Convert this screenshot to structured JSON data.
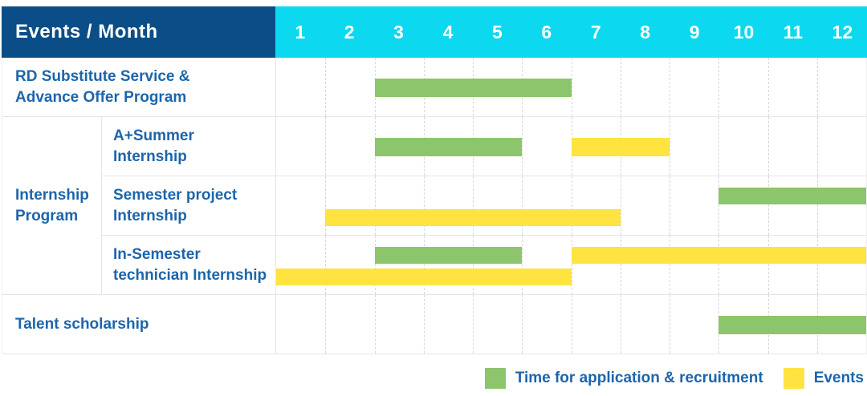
{
  "header": {
    "title": "Events / Month"
  },
  "legend": {
    "application": "Time for application & recruitment",
    "events": "Events"
  },
  "colors": {
    "header_bg": "#0b4e87",
    "months_bg": "#0cd9f0",
    "header_text": "#ffffff",
    "label_text": "#1d65ab",
    "green": "#8cc56b",
    "yellow": "#ffe340",
    "grid_line": "#e5e5e5",
    "month_line": "#d8d8d8"
  },
  "chart_data": {
    "type": "table",
    "subtype": "gantt-schedule",
    "title": "Events / Month",
    "x_axis_unit": "month",
    "x_categories": [
      "1",
      "2",
      "3",
      "4",
      "5",
      "6",
      "7",
      "8",
      "9",
      "10",
      "11",
      "12"
    ],
    "series_legend": [
      {
        "name": "Time for application & recruitment",
        "color": "#8cc56b"
      },
      {
        "name": "Events",
        "color": "#ffe340"
      }
    ],
    "rows": [
      {
        "group": "",
        "label": "RD Substitute Service & Advance Offer Program",
        "label_display": "RD Substitute Service &\nAdvance Offer Program",
        "lines": 1,
        "bars": [
          {
            "series": "Time for application & recruitment",
            "color_key": "green",
            "start_month": 3,
            "end_month": 6,
            "line": 1
          }
        ]
      },
      {
        "group": "Internship Program",
        "group_display": "Internship\nProgram",
        "group_start": true,
        "group_span": 3,
        "label": "A+Summer Internship",
        "label_display": "A+Summer\nInternship",
        "lines": 1,
        "bars": [
          {
            "series": "Time for application & recruitment",
            "color_key": "green",
            "start_month": 3,
            "end_month": 5,
            "line": 1
          },
          {
            "series": "Events",
            "color_key": "yellow",
            "start_month": 7,
            "end_month": 8,
            "line": 1
          }
        ]
      },
      {
        "group": "Internship Program",
        "label": "Semester project Internship",
        "label_display": "Semester project\nInternship",
        "lines": 2,
        "bars": [
          {
            "series": "Time for application & recruitment",
            "color_key": "green",
            "start_month": 10,
            "end_month": 12,
            "line": 1
          },
          {
            "series": "Events",
            "color_key": "yellow",
            "start_month": 2,
            "end_month": 7,
            "line": 2
          }
        ]
      },
      {
        "group": "Internship Program",
        "label": "In-Semester technician Internship",
        "label_display": "In-Semester\ntechnician Internship",
        "lines": 2,
        "bars": [
          {
            "series": "Time for application & recruitment",
            "color_key": "green",
            "start_month": 3,
            "end_month": 5,
            "line": 1
          },
          {
            "series": "Events",
            "color_key": "yellow",
            "start_month": 7,
            "end_month": 12,
            "line": 1
          },
          {
            "series": "Events",
            "color_key": "yellow",
            "start_month": 1,
            "end_month": 6,
            "line": 2
          }
        ]
      },
      {
        "group": "",
        "label": "Talent scholarship",
        "label_display": "Talent scholarship",
        "lines": 1,
        "bars": [
          {
            "series": "Time for application & recruitment",
            "color_key": "green",
            "start_month": 10,
            "end_month": 12,
            "line": 1
          }
        ]
      }
    ]
  }
}
